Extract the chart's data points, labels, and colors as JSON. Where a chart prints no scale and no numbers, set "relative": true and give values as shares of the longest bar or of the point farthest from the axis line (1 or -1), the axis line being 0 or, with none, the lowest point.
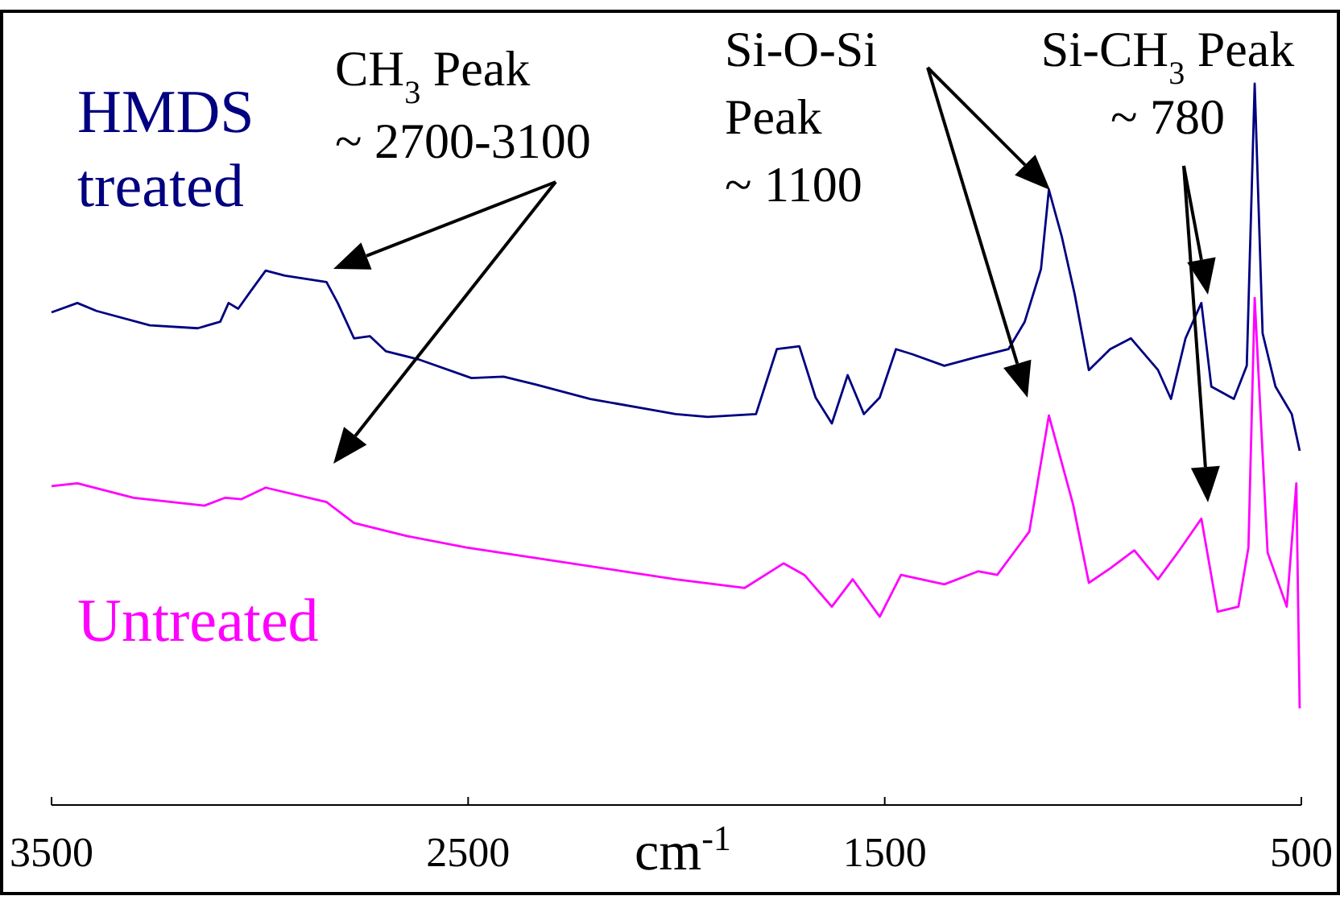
{
  "chart_data": {
    "type": "line",
    "relative": true,
    "xlabel": "cm$^{-1}$",
    "xlim": [
      3500,
      500
    ],
    "xticks": [
      3500,
      2500,
      1500,
      500
    ],
    "annotations": [
      "CH$_{3}$ Peak\n~ 2700-3100",
      "Si-O-Si\nPeak\n~ 1100",
      "Si-CH$_{3}$ Peak\n~ 780"
    ],
    "series": [
      {
        "name": "HMDS treated",
        "color": "#000080",
        "x": [
          3500,
          3438,
          3392,
          3264,
          3149,
          3095,
          3075,
          3052,
          3025,
          2986,
          2940,
          2840,
          2813,
          2774,
          2736,
          2697,
          2620,
          2492,
          2415,
          2338,
          2207,
          2002,
          1925,
          1809,
          1759,
          1705,
          1666,
          1627,
          1589,
          1550,
          1512,
          1473,
          1434,
          1357,
          1280,
          1203,
          1164,
          1125,
          1106,
          1075,
          1044,
          1010,
          959,
          909,
          844,
          813,
          778,
          740,
          716,
          662,
          631,
          612,
          593,
          562,
          523,
          504
        ],
        "values": [
          0.683,
          0.696,
          0.685,
          0.665,
          0.661,
          0.67,
          0.696,
          0.688,
          0.71,
          0.741,
          0.734,
          0.725,
          0.696,
          0.647,
          0.65,
          0.629,
          0.618,
          0.592,
          0.594,
          0.583,
          0.563,
          0.542,
          0.538,
          0.542,
          0.632,
          0.636,
          0.565,
          0.529,
          0.596,
          0.542,
          0.565,
          0.632,
          0.625,
          0.609,
          0.621,
          0.632,
          0.67,
          0.743,
          0.853,
          0.788,
          0.708,
          0.603,
          0.632,
          0.647,
          0.603,
          0.563,
          0.647,
          0.696,
          0.58,
          0.563,
          0.609,
          1,
          0.654,
          0.58,
          0.542,
          0.491
        ]
      },
      {
        "name": "Untreated",
        "color": "#ff00ff",
        "x": [
          3500,
          3438,
          3303,
          3133,
          3083,
          3044,
          2986,
          2840,
          2774,
          2647,
          2504,
          2002,
          1836,
          1743,
          1693,
          1627,
          1577,
          1512,
          1461,
          1357,
          1276,
          1230,
          1153,
          1106,
          1048,
          1010,
          959,
          901,
          844,
          793,
          740,
          701,
          651,
          627,
          612,
          581,
          535,
          512,
          504
        ],
        "values": [
          0.442,
          0.446,
          0.426,
          0.415,
          0.426,
          0.424,
          0.44,
          0.42,
          0.391,
          0.373,
          0.357,
          0.313,
          0.301,
          0.335,
          0.319,
          0.275,
          0.313,
          0.261,
          0.319,
          0.306,
          0.324,
          0.319,
          0.379,
          0.54,
          0.417,
          0.308,
          0.328,
          0.353,
          0.313,
          0.353,
          0.397,
          0.268,
          0.275,
          0.357,
          0.703,
          0.35,
          0.275,
          0.446,
          0.134
        ]
      }
    ]
  }
}
